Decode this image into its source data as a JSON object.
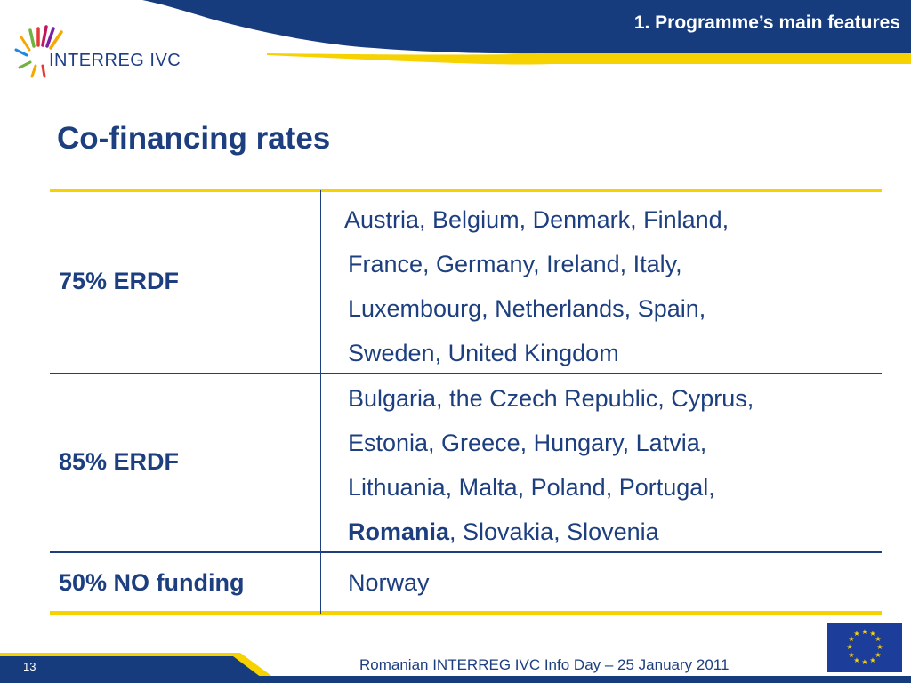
{
  "header": {
    "section_title": "1. Programme’s main features"
  },
  "logo": {
    "text": "INTERREG IVC"
  },
  "title": "Co-financing rates",
  "rows": [
    {
      "rate": "75% ERDF",
      "lines": [
        "Austria, Belgium, Denmark, Finland,",
        "France, Germany, Ireland, Italy,",
        "Luxembourg, Netherlands, Spain,",
        "Sweden, United Kingdom"
      ]
    },
    {
      "rate": "85% ERDF",
      "lines": [
        "Bulgaria, the Czech Republic, Cyprus,",
        "Estonia, Greece, Hungary, Latvia,",
        "Lithuania, Malta, Poland, Portugal,"
      ],
      "last_bold": "Romania",
      "last_rest": ", Slovakia, Slovenia"
    },
    {
      "rate": "50% NO funding",
      "lines": [
        "Norway"
      ]
    }
  ],
  "footer": {
    "page_number": "13",
    "text": "Romanian INTERREG IVC Info Day – 25 January 2011"
  },
  "colors": {
    "navy": "#1d3f7f",
    "gold": "#f6d200"
  },
  "icons": [
    "interreg-logo-icon",
    "eu-flag-icon"
  ]
}
